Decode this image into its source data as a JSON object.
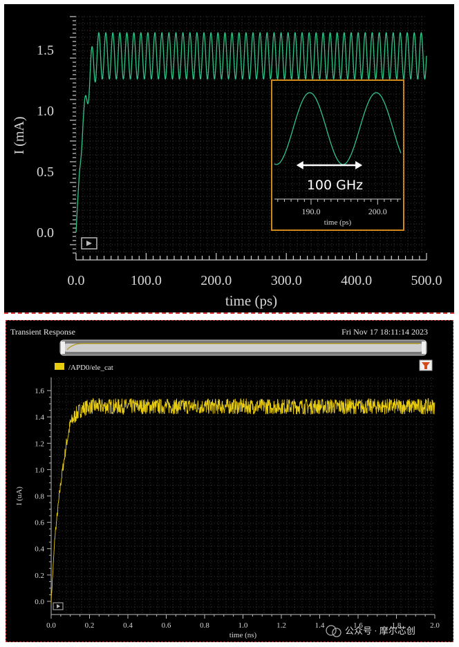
{
  "chart_data": [
    {
      "type": "line",
      "title": "",
      "xlabel": "time (ps)",
      "ylabel": "I (mA)",
      "xlim": [
        0,
        500
      ],
      "ylim": [
        0,
        1.6
      ],
      "x_ticks": [
        "0.0",
        "100.0",
        "200.0",
        "300.0",
        "400.0",
        "500.0"
      ],
      "y_ticks": [
        "0.0",
        "0.5",
        "1.0",
        "1.5"
      ],
      "grid": true,
      "series": [
        {
          "color": "#2fc58a",
          "x": [
            0,
            5,
            10,
            15,
            20,
            25,
            30,
            40,
            500
          ],
          "y": [
            0,
            0.5,
            0.9,
            1.1,
            1.3,
            1.4,
            1.45,
            1.45,
            1.45
          ],
          "oscillation_amplitude": 0.19,
          "oscillation_frequency_ghz": 100
        }
      ],
      "inset": {
        "xlabel": "time (ps)",
        "x_ticks": [
          "190.0",
          "200.0"
        ],
        "annotation": "100 GHz",
        "border_color": "#d08a1a"
      }
    },
    {
      "type": "line",
      "title": "Transient Response",
      "timestamp": "Fri Nov 17 18:11:14 2023",
      "legend": [
        "/APD0/ele_cat"
      ],
      "xlabel": "time (ns)",
      "ylabel": "I (uA)",
      "xlim": [
        0,
        2.0
      ],
      "ylim": [
        -0.1,
        1.7
      ],
      "x_ticks": [
        "0.0",
        "0.2",
        "0.4",
        "0.6",
        "0.8",
        "1.0",
        "1.2",
        "1.4",
        "1.6",
        "1.8",
        "2.0"
      ],
      "y_ticks": [
        "0.0",
        "0.2",
        "0.4",
        "0.6",
        "0.8",
        "1.0",
        "1.2",
        "1.4",
        "1.6"
      ],
      "grid": true,
      "series": [
        {
          "name": "/APD0/ele_cat",
          "color": "#e8cc10",
          "x": [
            0,
            0.02,
            0.05,
            0.08,
            0.1,
            0.13,
            0.16,
            0.2,
            2.0
          ],
          "y": [
            0,
            0.5,
            0.9,
            1.2,
            1.35,
            1.42,
            1.46,
            1.48,
            1.48
          ],
          "noise_amplitude": 0.06
        }
      ]
    }
  ],
  "watermark": "公众号 · 摩尔芯创"
}
